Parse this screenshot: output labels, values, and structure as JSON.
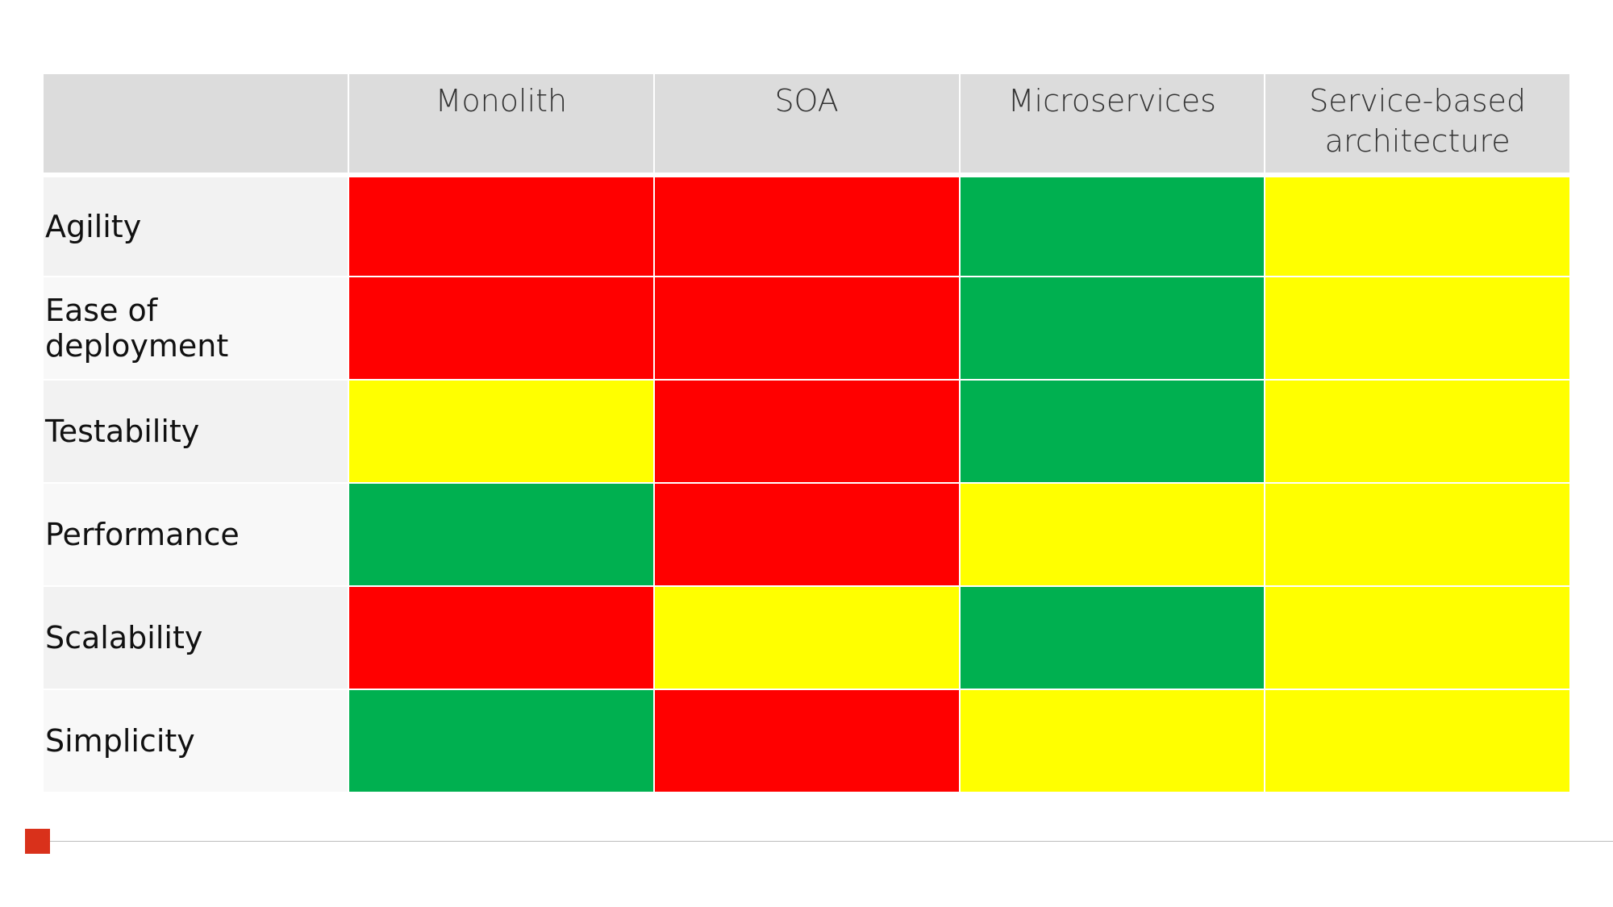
{
  "table": {
    "columns": [
      "Monolith",
      "SOA",
      "Microservices",
      "Service-based architecture"
    ],
    "rows": [
      {
        "label": "Agility",
        "cells": [
          "#ff0000",
          "#ff0000",
          "#00b050",
          "#ffff00"
        ]
      },
      {
        "label": "Ease of deployment",
        "cells": [
          "#ff0000",
          "#ff0000",
          "#00b050",
          "#ffff00"
        ]
      },
      {
        "label": "Testability",
        "cells": [
          "#ffff00",
          "#ff0000",
          "#00b050",
          "#ffff00"
        ]
      },
      {
        "label": "Performance",
        "cells": [
          "#00b050",
          "#ff0000",
          "#ffff00",
          "#ffff00"
        ]
      },
      {
        "label": "Scalability",
        "cells": [
          "#ff0000",
          "#ffff00",
          "#00b050",
          "#ffff00"
        ]
      },
      {
        "label": "Simplicity",
        "cells": [
          "#00b050",
          "#ff0000",
          "#ffff00",
          "#ffff00"
        ]
      }
    ]
  }
}
